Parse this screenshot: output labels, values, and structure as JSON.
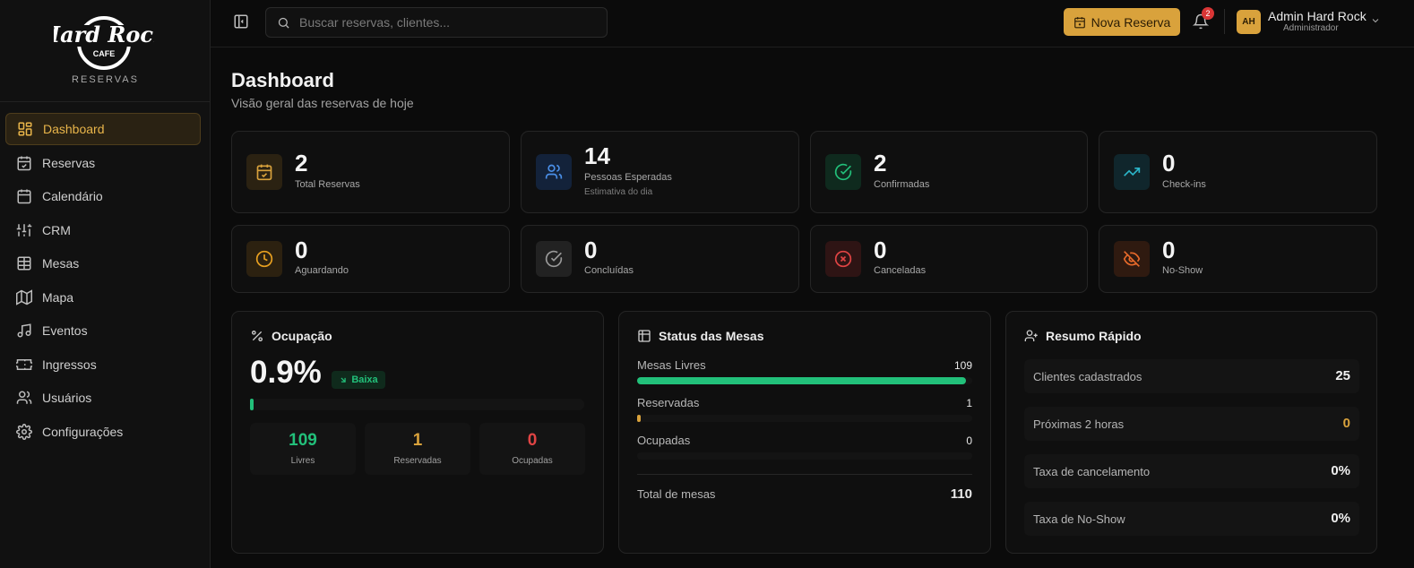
{
  "brand": {
    "logo_text": "Hard Rock",
    "logo_cafe": "CAFE",
    "subtitle": "RESERVAS",
    "accent": "#d9a23c"
  },
  "sidebar": {
    "items": [
      {
        "label": "Dashboard",
        "icon": "dashboard-icon",
        "active": true
      },
      {
        "label": "Reservas",
        "icon": "calendar-check-icon"
      },
      {
        "label": "Calendário",
        "icon": "calendar-icon"
      },
      {
        "label": "CRM",
        "icon": "crm-icon"
      },
      {
        "label": "Mesas",
        "icon": "table-icon"
      },
      {
        "label": "Mapa",
        "icon": "map-icon"
      },
      {
        "label": "Eventos",
        "icon": "music-icon"
      },
      {
        "label": "Ingressos",
        "icon": "ticket-icon"
      },
      {
        "label": "Usuários",
        "icon": "users-icon"
      },
      {
        "label": "Configurações",
        "icon": "gear-icon"
      }
    ]
  },
  "topbar": {
    "search_placeholder": "Buscar reservas, clientes...",
    "new_button": "Nova Reserva",
    "notifications": "2",
    "user": {
      "initials": "AH",
      "name": "Admin Hard Rock",
      "role": "Administrador"
    }
  },
  "page": {
    "title": "Dashboard",
    "subtitle": "Visão geral das reservas de hoje"
  },
  "stats": [
    {
      "value": "2",
      "label": "Total Reservas",
      "icon": "calendar-check-icon",
      "color": "#d9a23c"
    },
    {
      "value": "14",
      "label": "Pessoas Esperadas",
      "sub": "Estimativa do dia",
      "icon": "users-icon",
      "color": "#4a8fe8"
    },
    {
      "value": "2",
      "label": "Confirmadas",
      "icon": "check-circle-icon",
      "color": "#22c07a"
    },
    {
      "value": "0",
      "label": "Check-ins",
      "icon": "trending-up-icon",
      "color": "#2bb5c9"
    },
    {
      "value": "0",
      "label": "Aguardando",
      "icon": "clock-icon",
      "color": "#e8a020"
    },
    {
      "value": "0",
      "label": "Concluídas",
      "icon": "check-circle-icon",
      "color": "#9a9a9a"
    },
    {
      "value": "0",
      "label": "Canceladas",
      "icon": "x-circle-icon",
      "color": "#e04444"
    },
    {
      "value": "0",
      "label": "No-Show",
      "icon": "eye-off-icon",
      "color": "#e86a2a"
    }
  ],
  "occupancy": {
    "title": "Ocupação",
    "value": "0.9%",
    "percent": 0.9,
    "badge": "Baixa",
    "boxes": [
      {
        "value": "109",
        "label": "Livres",
        "color": "#22c07a"
      },
      {
        "value": "1",
        "label": "Reservadas",
        "color": "#d9a23c"
      },
      {
        "value": "0",
        "label": "Ocupadas",
        "color": "#e04444"
      }
    ]
  },
  "tables_status": {
    "title": "Status das Mesas",
    "rows": [
      {
        "label": "Mesas Livres",
        "value": "109",
        "fraction": 0.991,
        "color": "#22c07a"
      },
      {
        "label": "Reservadas",
        "value": "1",
        "fraction": 0.009,
        "color": "#d9a23c"
      },
      {
        "label": "Ocupadas",
        "value": "0",
        "fraction": 0,
        "color": "#e04444"
      }
    ],
    "total_label": "Total de mesas",
    "total_value": "110"
  },
  "summary": {
    "title": "Resumo Rápido",
    "rows": [
      {
        "label": "Clientes cadastrados",
        "value": "25",
        "color": "#f0f0f0"
      },
      {
        "label": "Próximas 2 horas",
        "value": "0",
        "color": "#d9a23c"
      },
      {
        "label": "Taxa de cancelamento",
        "value": "0%",
        "color": "#f0f0f0"
      },
      {
        "label": "Taxa de No-Show",
        "value": "0%",
        "color": "#f0f0f0"
      }
    ]
  }
}
